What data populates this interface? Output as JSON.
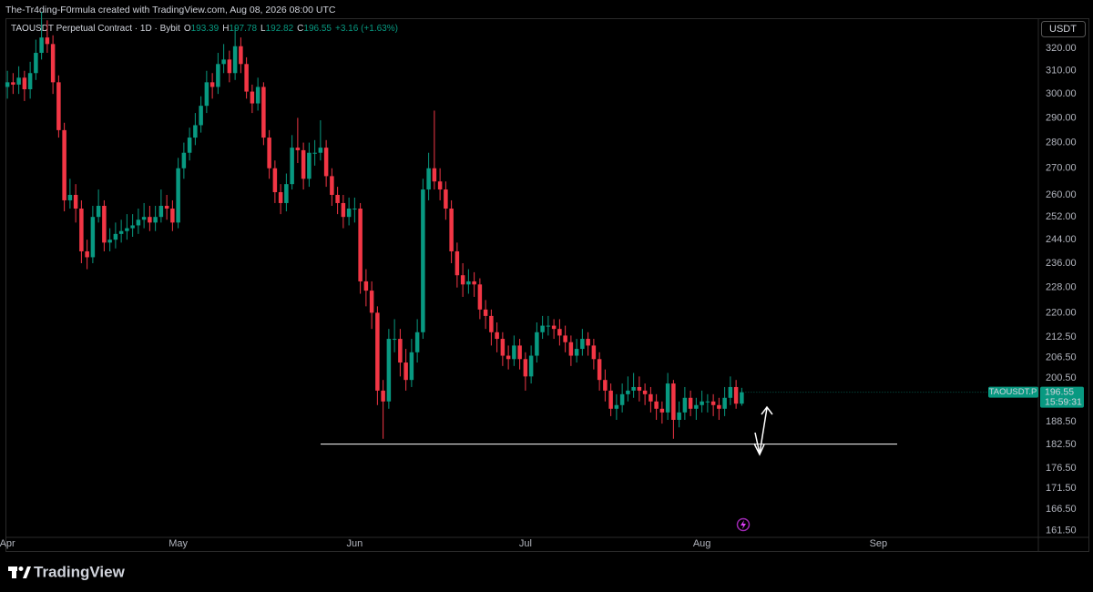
{
  "attribution": "The-Tr4ding-F0rmula created with TradingView.com, Aug 08, 2026 08:00 UTC",
  "brand": "TradingView",
  "chart_data": {
    "type": "candlestick",
    "symbol": "TAOUSDT Perpetual Contract · 1D · Bybit",
    "ohlc_letters": [
      "O",
      "H",
      "L",
      "C"
    ],
    "change": "+3.16 (+1.63%)",
    "currency": "USDT",
    "price_badge": {
      "ticker": "TAOUSDT.P",
      "countdown": "15:59:31"
    },
    "up_color": "#089981",
    "down_color": "#f23645",
    "log": true,
    "grid": false,
    "hline": {
      "value": 182.6,
      "color": "#ffffff"
    },
    "xlim": [
      -1.3,
      181.1
    ],
    "xticks": [
      {
        "value": 0,
        "label": "Apr"
      },
      {
        "value": 30,
        "label": "May"
      },
      {
        "value": 61,
        "label": "Jun"
      },
      {
        "value": 91,
        "label": "Jul"
      },
      {
        "value": 122,
        "label": "Aug"
      },
      {
        "value": 153,
        "label": "Sep"
      }
    ],
    "ylim": [
      160,
      334
    ],
    "yticks": [
      {
        "value": 161.5,
        "label": "161.50"
      },
      {
        "value": 166.5,
        "label": "166.50"
      },
      {
        "value": 171.5,
        "label": "171.50"
      },
      {
        "value": 176.5,
        "label": "176.50"
      },
      {
        "value": 182.5,
        "label": "182.50"
      },
      {
        "value": 188.5,
        "label": "188.50"
      },
      {
        "value": 200.5,
        "label": "200.50"
      },
      {
        "value": 206.5,
        "label": "206.50"
      },
      {
        "value": 212.5,
        "label": "212.50"
      },
      {
        "value": 220,
        "label": "220.00"
      },
      {
        "value": 228,
        "label": "228.00"
      },
      {
        "value": 236,
        "label": "236.00"
      },
      {
        "value": 244,
        "label": "244.00"
      },
      {
        "value": 252,
        "label": "252.00"
      },
      {
        "value": 260,
        "label": "260.00"
      },
      {
        "value": 270,
        "label": "270.00"
      },
      {
        "value": 280,
        "label": "280.00"
      },
      {
        "value": 290,
        "label": "290.00"
      },
      {
        "value": 300,
        "label": "300.00"
      },
      {
        "value": 310,
        "label": "310.00"
      },
      {
        "value": 320,
        "label": "320.00"
      }
    ],
    "open": [
      303,
      305,
      304,
      307,
      302,
      309,
      318,
      325,
      322,
      305,
      285,
      258,
      260,
      255,
      240,
      238,
      252,
      256,
      243,
      244,
      246,
      247,
      248,
      249,
      251,
      252,
      250,
      252,
      256,
      255,
      250,
      270,
      276,
      282,
      287,
      295,
      305,
      303,
      313,
      315,
      309,
      321,
      313,
      301,
      296,
      303,
      282,
      270,
      261,
      257,
      264,
      278,
      277,
      266,
      276,
      276,
      278,
      267,
      260,
      257,
      252,
      255,
      255,
      230,
      227,
      220,
      197,
      194,
      212,
      212,
      205,
      200,
      208,
      214,
      262,
      270,
      265,
      262,
      255,
      240,
      232,
      229,
      230,
      229,
      221,
      219,
      214,
      212,
      207,
      206,
      210,
      206,
      201,
      207,
      214,
      216,
      216,
      215,
      213,
      211,
      207,
      209,
      212,
      210,
      206,
      200,
      197,
      192,
      193,
      196,
      197,
      198,
      197,
      196,
      194,
      192,
      191,
      199,
      189,
      191,
      195,
      192,
      193,
      194,
      194,
      193,
      192,
      195,
      198,
      193.39
    ],
    "high": [
      310,
      309,
      312,
      310,
      314,
      324,
      337,
      333,
      326,
      308,
      288,
      266,
      264,
      258,
      244,
      256,
      262,
      258,
      248,
      250,
      251,
      253,
      253,
      255,
      257,
      256,
      256,
      262,
      260,
      258,
      274,
      280,
      286,
      292,
      299,
      310,
      309,
      318,
      322,
      319,
      330,
      325,
      316,
      304,
      307,
      305,
      285,
      273,
      264,
      268,
      283,
      290,
      280,
      280,
      281,
      289,
      281,
      270,
      263,
      260,
      259,
      259,
      257,
      234,
      230,
      222,
      200,
      215,
      218,
      215,
      209,
      212,
      218,
      266,
      276,
      293,
      270,
      265,
      258,
      243,
      236,
      234,
      233,
      231,
      224,
      221,
      217,
      214,
      210,
      213,
      212,
      208,
      210,
      217,
      219,
      219,
      218,
      218,
      216,
      213,
      212,
      215,
      214,
      212,
      208,
      203,
      199,
      196,
      199,
      201,
      202,
      201,
      199,
      198,
      196,
      194,
      202,
      200,
      194,
      198,
      197,
      195,
      197,
      196,
      196,
      195,
      198,
      201,
      200,
      197.78
    ],
    "low": [
      298,
      300,
      300,
      297,
      298,
      306,
      315,
      318,
      300,
      282,
      254,
      255,
      250,
      236,
      234,
      236,
      250,
      240,
      240,
      241,
      243,
      244,
      245,
      246,
      248,
      247,
      247,
      250,
      251,
      247,
      248,
      266,
      273,
      279,
      284,
      292,
      298,
      300,
      309,
      305,
      306,
      309,
      298,
      292,
      293,
      279,
      266,
      257,
      253,
      254,
      262,
      272,
      262,
      263,
      271,
      273,
      263,
      256,
      253,
      248,
      249,
      250,
      226,
      222,
      215,
      193,
      184,
      192,
      208,
      201,
      197,
      198,
      205,
      212,
      258,
      262,
      258,
      251,
      236,
      228,
      225,
      226,
      225,
      218,
      215,
      210,
      208,
      204,
      203,
      204,
      203,
      197,
      199,
      205,
      212,
      213,
      212,
      210,
      208,
      204,
      205,
      207,
      207,
      203,
      197,
      194,
      190,
      189,
      191,
      194,
      195,
      194,
      193,
      191,
      189,
      188,
      189,
      184,
      187,
      189,
      190,
      189,
      191,
      191,
      190,
      189,
      190,
      193,
      192,
      192.82
    ],
    "close": [
      305,
      304,
      307,
      302,
      309,
      318,
      325,
      322,
      305,
      285,
      258,
      260,
      255,
      240,
      238,
      252,
      256,
      243,
      244,
      246,
      247,
      248,
      249,
      251,
      252,
      250,
      252,
      256,
      255,
      250,
      270,
      276,
      282,
      287,
      295,
      305,
      303,
      313,
      315,
      309,
      321,
      313,
      301,
      296,
      303,
      282,
      270,
      261,
      257,
      264,
      278,
      277,
      266,
      276,
      276,
      278,
      267,
      260,
      257,
      252,
      255,
      255,
      230,
      227,
      220,
      197,
      194,
      212,
      212,
      205,
      200,
      208,
      214,
      262,
      270,
      265,
      262,
      255,
      240,
      232,
      229,
      230,
      229,
      221,
      219,
      214,
      212,
      207,
      206,
      210,
      206,
      201,
      207,
      214,
      216,
      216,
      215,
      213,
      211,
      207,
      209,
      212,
      210,
      206,
      200,
      197,
      192,
      193,
      196,
      197,
      198,
      197,
      196,
      194,
      192,
      191,
      199,
      189,
      191,
      195,
      192,
      193,
      194,
      194,
      193,
      192,
      195,
      198,
      193.39,
      196.55
    ]
  }
}
